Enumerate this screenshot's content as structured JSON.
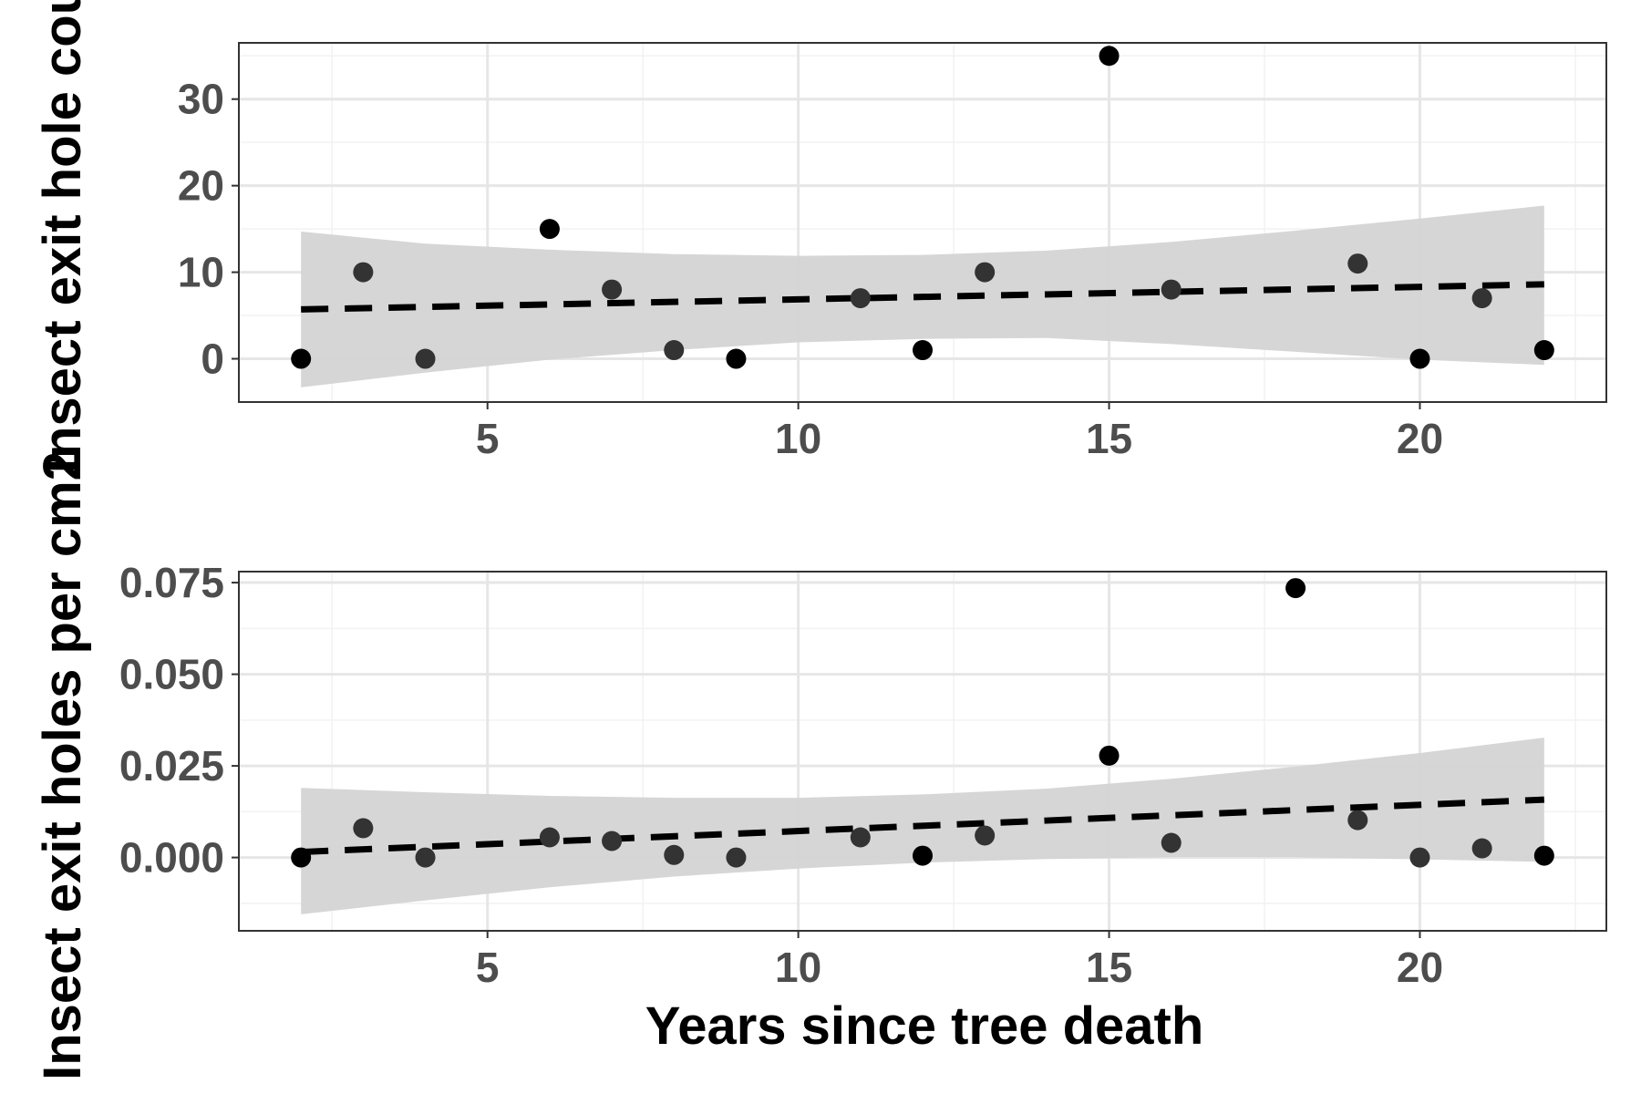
{
  "colors": {
    "panel_background": "#ffffff",
    "panel_border": "#333333",
    "grid_major": "#e6e6e6",
    "grid_minor": "#f2f2f2",
    "ribbon": "#d4d4d4",
    "trend_line": "#000000",
    "point_dark": "#000000",
    "point_gray": "#333333",
    "tick_text": "#4d4d4d"
  },
  "chart_data": [
    {
      "type": "scatter",
      "title": "",
      "xlabel": "",
      "ylabel": "Insect exit hole cou",
      "xlim": [
        1.0,
        23.0
      ],
      "ylim": [
        -5,
        36.5
      ],
      "x_ticks": [
        5,
        10,
        15,
        20
      ],
      "y_ticks": [
        0,
        10,
        20,
        30
      ],
      "y_tick_labels": [
        "0",
        "10",
        "20",
        "30"
      ],
      "grid": true,
      "points": [
        {
          "x": 2,
          "y": 0,
          "shade": "dark"
        },
        {
          "x": 3,
          "y": 10,
          "shade": "gray"
        },
        {
          "x": 4,
          "y": 0,
          "shade": "gray"
        },
        {
          "x": 6,
          "y": 15,
          "shade": "dark"
        },
        {
          "x": 7,
          "y": 8,
          "shade": "gray"
        },
        {
          "x": 8,
          "y": 1,
          "shade": "gray"
        },
        {
          "x": 9,
          "y": 0,
          "shade": "dark"
        },
        {
          "x": 11,
          "y": 7,
          "shade": "gray"
        },
        {
          "x": 12,
          "y": 1,
          "shade": "dark"
        },
        {
          "x": 13,
          "y": 10,
          "shade": "gray"
        },
        {
          "x": 15,
          "y": 35,
          "shade": "dark"
        },
        {
          "x": 16,
          "y": 8,
          "shade": "gray"
        },
        {
          "x": 19,
          "y": 11,
          "shade": "gray"
        },
        {
          "x": 20,
          "y": 0,
          "shade": "dark"
        },
        {
          "x": 21,
          "y": 7,
          "shade": "gray"
        },
        {
          "x": 22,
          "y": 1,
          "shade": "dark"
        }
      ],
      "trend": {
        "style": "dashed",
        "x": [
          2,
          22
        ],
        "y": [
          5.7,
          8.6
        ]
      },
      "confidence_band": {
        "x": [
          2,
          4,
          6,
          8,
          10,
          12,
          14,
          16,
          18,
          20,
          22
        ],
        "upper": [
          14.7,
          13.3,
          12.6,
          12.1,
          11.9,
          12.0,
          12.5,
          13.5,
          14.8,
          16.2,
          17.7
        ],
        "lower": [
          -3.3,
          -1.6,
          -0.1,
          1.0,
          1.9,
          2.3,
          2.4,
          1.7,
          0.8,
          -0.1,
          -0.7
        ]
      }
    },
    {
      "type": "scatter",
      "title": "",
      "xlabel": "Years since tree death",
      "ylabel": "Insect exit holes per cm2",
      "xlim": [
        1.0,
        23.0
      ],
      "ylim": [
        -0.02,
        0.078
      ],
      "x_ticks": [
        5,
        10,
        15,
        20
      ],
      "y_ticks": [
        0.0,
        0.025,
        0.05,
        0.075
      ],
      "y_tick_labels": [
        "0.000",
        "0.025",
        "0.050",
        "0.075"
      ],
      "grid": true,
      "points": [
        {
          "x": 2,
          "y": 0.0,
          "shade": "dark"
        },
        {
          "x": 3,
          "y": 0.008,
          "shade": "gray"
        },
        {
          "x": 4,
          "y": 0.0,
          "shade": "gray"
        },
        {
          "x": 6,
          "y": 0.0055,
          "shade": "gray"
        },
        {
          "x": 7,
          "y": 0.0045,
          "shade": "gray"
        },
        {
          "x": 8,
          "y": 0.0007,
          "shade": "gray"
        },
        {
          "x": 9,
          "y": 0.0,
          "shade": "gray"
        },
        {
          "x": 11,
          "y": 0.0055,
          "shade": "gray"
        },
        {
          "x": 12,
          "y": 0.0005,
          "shade": "dark"
        },
        {
          "x": 13,
          "y": 0.006,
          "shade": "gray"
        },
        {
          "x": 15,
          "y": 0.0278,
          "shade": "dark"
        },
        {
          "x": 16,
          "y": 0.004,
          "shade": "gray"
        },
        {
          "x": 18,
          "y": 0.0735,
          "shade": "dark"
        },
        {
          "x": 19,
          "y": 0.0102,
          "shade": "gray"
        },
        {
          "x": 20,
          "y": 0.0,
          "shade": "gray"
        },
        {
          "x": 21,
          "y": 0.0025,
          "shade": "gray"
        },
        {
          "x": 22,
          "y": 0.0005,
          "shade": "dark"
        }
      ],
      "trend": {
        "style": "dashed",
        "x": [
          2,
          22
        ],
        "y": [
          0.0015,
          0.0158
        ]
      },
      "confidence_band": {
        "x": [
          2,
          4,
          6,
          8,
          10,
          12,
          14,
          16,
          18,
          20,
          22
        ],
        "upper": [
          0.019,
          0.0178,
          0.0168,
          0.0163,
          0.0163,
          0.0172,
          0.0188,
          0.0215,
          0.0248,
          0.0285,
          0.0327
        ],
        "lower": [
          -0.0155,
          -0.0117,
          -0.0081,
          -0.0052,
          -0.003,
          -0.0014,
          -0.0004,
          0.0001,
          0.0001,
          -0.0005,
          -0.0012
        ]
      }
    }
  ],
  "x_axis_title": "Years since tree death"
}
